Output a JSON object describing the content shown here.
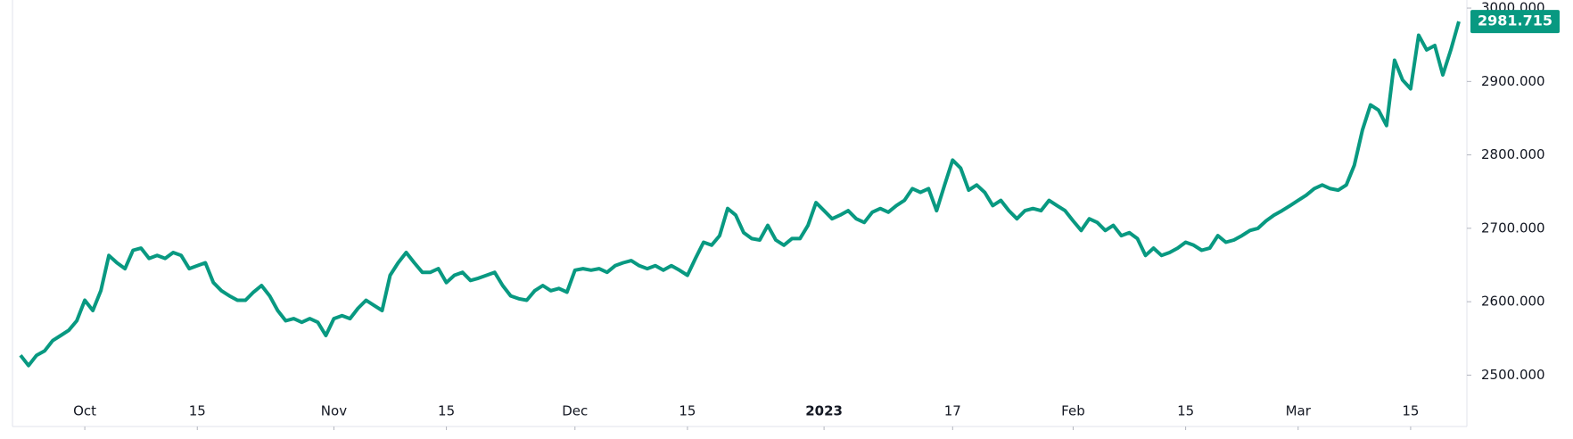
{
  "chart_data": {
    "type": "line",
    "x": [
      22,
      23,
      24,
      25,
      26,
      27,
      28,
      29,
      30,
      31,
      32,
      33,
      34,
      35,
      36,
      37,
      38,
      39,
      40,
      41,
      42,
      43,
      44,
      45,
      46,
      47,
      48,
      49,
      50,
      51,
      52,
      53,
      54,
      55,
      56,
      57,
      58,
      59,
      60,
      61,
      62,
      63,
      64,
      65,
      66,
      67,
      68,
      69,
      70,
      71,
      72,
      73,
      74,
      75,
      76,
      77,
      78,
      79,
      80,
      81,
      82,
      83,
      84,
      85,
      86,
      87,
      88,
      89,
      90,
      91,
      92,
      93,
      94,
      95,
      96,
      97,
      98,
      99,
      100,
      101,
      102,
      103,
      104,
      105,
      106,
      107,
      108,
      109,
      110,
      111,
      112,
      113,
      114,
      115,
      116,
      117,
      118,
      119,
      120,
      121,
      122,
      123,
      124,
      125,
      126,
      127,
      128,
      129,
      130,
      131,
      132,
      133,
      134,
      135,
      136,
      137,
      138,
      139,
      140,
      141,
      142,
      143,
      144,
      145,
      146,
      147,
      148,
      149,
      150,
      151,
      152,
      153,
      154,
      155,
      156,
      157,
      158,
      159,
      160,
      161,
      162,
      163,
      164,
      165,
      166,
      167,
      168,
      169,
      170,
      171,
      172,
      173,
      174,
      175,
      176,
      177,
      178,
      179,
      180,
      181,
      182,
      183,
      184,
      185,
      186,
      187,
      188,
      189,
      190,
      191,
      192,
      193,
      194,
      195,
      196,
      197,
      198,
      199,
      200,
      201
    ],
    "series": [
      {
        "color": "#089981",
        "values": [
          2527,
          2513,
          2527,
          2533,
          2547,
          2554,
          2561,
          2574,
          2602,
          2588,
          2615,
          2663,
          2653,
          2645,
          2670,
          2673,
          2659,
          2663,
          2659,
          2667,
          2663,
          2645,
          2649,
          2653,
          2626,
          2615,
          2608,
          2602,
          2602,
          2613,
          2622,
          2608,
          2588,
          2574,
          2577,
          2572,
          2577,
          2572,
          2554,
          2577,
          2581,
          2577,
          2591,
          2602,
          2595,
          2588,
          2636,
          2653,
          2667,
          2653,
          2640,
          2640,
          2645,
          2626,
          2636,
          2640,
          2629,
          2632,
          2636,
          2640,
          2622,
          2608,
          2604,
          2602,
          2615,
          2622,
          2615,
          2618,
          2613,
          2643,
          2645,
          2643,
          2645,
          2640,
          2649,
          2653,
          2656,
          2649,
          2645,
          2649,
          2643,
          2649,
          2643,
          2636,
          2659,
          2681,
          2677,
          2690,
          2727,
          2718,
          2694,
          2686,
          2684,
          2704,
          2684,
          2677,
          2686,
          2686,
          2704,
          2735,
          2724,
          2713,
          2718,
          2724,
          2713,
          2708,
          2722,
          2727,
          2722,
          2731,
          2738,
          2754,
          2749,
          2754,
          2724,
          2759,
          2793,
          2782,
          2752,
          2759,
          2749,
          2731,
          2738,
          2724,
          2713,
          2724,
          2727,
          2724,
          2738,
          2731,
          2724,
          2710,
          2697,
          2713,
          2708,
          2697,
          2704,
          2690,
          2694,
          2686,
          2663,
          2673,
          2663,
          2667,
          2673,
          2681,
          2677,
          2670,
          2673,
          2690,
          2681,
          2684,
          2690,
          2697,
          2700,
          2710,
          2718,
          2724,
          2731,
          2738,
          2745,
          2754,
          2759,
          2754,
          2752,
          2759,
          2786,
          2834,
          2868,
          2861,
          2840,
          2929,
          2902,
          2890,
          2963,
          2943,
          2949,
          2909,
          2943,
          2981.715
        ]
      }
    ],
    "xlim": [
      21,
      202
    ],
    "xticks": [
      {
        "value": 30,
        "label": "Oct"
      },
      {
        "value": 44,
        "label": "15"
      },
      {
        "value": 61,
        "label": "Nov"
      },
      {
        "value": 75,
        "label": "15"
      },
      {
        "value": 91,
        "label": "Dec"
      },
      {
        "value": 105,
        "label": "15"
      },
      {
        "value": 122,
        "label": "2023"
      },
      {
        "value": 138,
        "label": "17"
      },
      {
        "value": 153,
        "label": "Feb"
      },
      {
        "value": 167,
        "label": "15"
      },
      {
        "value": 181,
        "label": "Mar"
      },
      {
        "value": 195,
        "label": "15"
      }
    ],
    "ylim": [
      2430,
      3011
    ],
    "yticks": [
      {
        "value": 2500,
        "label": "2500.000"
      },
      {
        "value": 2600,
        "label": "2600.000"
      },
      {
        "value": 2700,
        "label": "2700.000"
      },
      {
        "value": 2800,
        "label": "2800.000"
      },
      {
        "value": 2900,
        "label": "2900.000"
      },
      {
        "value": 3000,
        "label": "3000.000"
      }
    ],
    "grid": false
  }
}
